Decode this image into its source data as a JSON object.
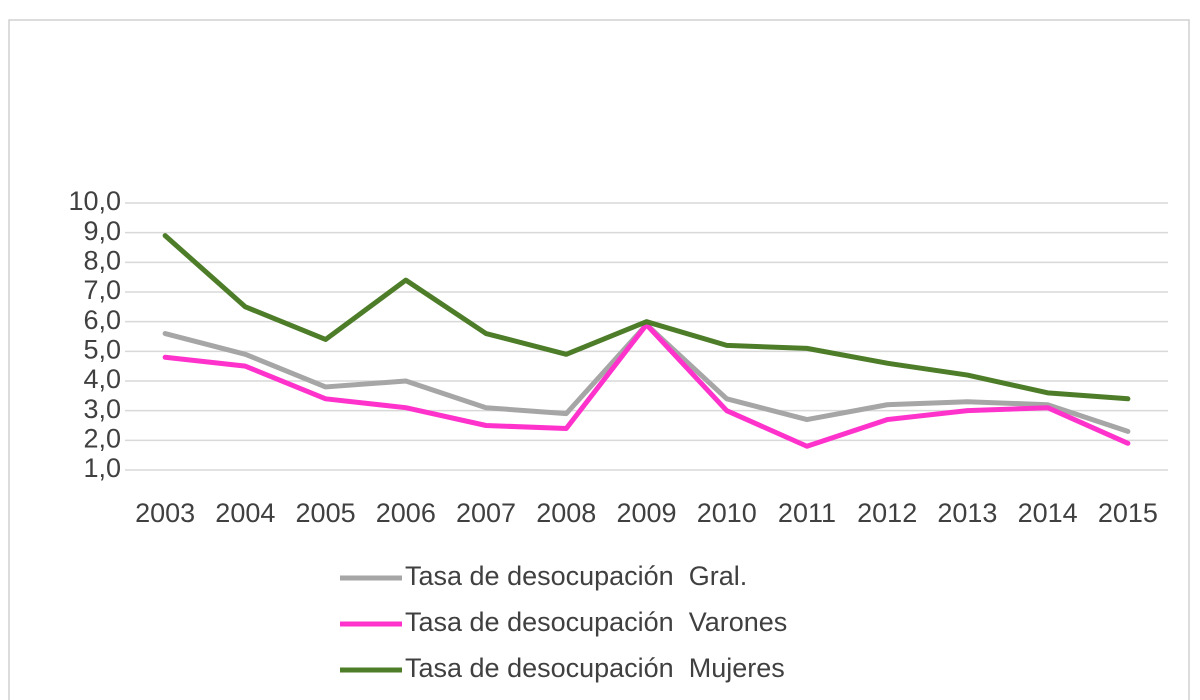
{
  "chart_data": {
    "type": "line",
    "categories": [
      "2003",
      "2004",
      "2005",
      "2006",
      "2007",
      "2008",
      "2009",
      "2010",
      "2011",
      "2012",
      "2013",
      "2014",
      "2015"
    ],
    "series": [
      {
        "name": "Tasa de desocupación  Gral.",
        "color": "#a6a6a6",
        "values": [
          5.6,
          4.9,
          3.8,
          4.0,
          3.1,
          2.9,
          5.9,
          3.4,
          2.7,
          3.2,
          3.3,
          3.2,
          2.3
        ]
      },
      {
        "name": "Tasa de desocupación  Varones",
        "color": "#ff33cc",
        "values": [
          4.8,
          4.5,
          3.4,
          3.1,
          2.5,
          2.4,
          5.9,
          3.0,
          1.8,
          2.7,
          3.0,
          3.1,
          1.9
        ]
      },
      {
        "name": "Tasa de desocupación  Mujeres",
        "color": "#4e7d2a",
        "values": [
          8.9,
          6.5,
          5.4,
          7.4,
          5.6,
          4.9,
          6.0,
          5.2,
          5.1,
          4.6,
          4.2,
          3.6,
          3.4
        ]
      }
    ],
    "ylim": [
      1,
      10
    ],
    "yticks": [
      {
        "value": 1,
        "label": "1,0"
      },
      {
        "value": 2,
        "label": "2,0"
      },
      {
        "value": 3,
        "label": "3,0"
      },
      {
        "value": 4,
        "label": "4,0"
      },
      {
        "value": 5,
        "label": "5,0"
      },
      {
        "value": 6,
        "label": "6,0"
      },
      {
        "value": 7,
        "label": "7,0"
      },
      {
        "value": 8,
        "label": "8,0"
      },
      {
        "value": 9,
        "label": "9,0"
      },
      {
        "value": 10,
        "label": "10,0"
      }
    ],
    "grid": true,
    "legend": "bottom"
  }
}
